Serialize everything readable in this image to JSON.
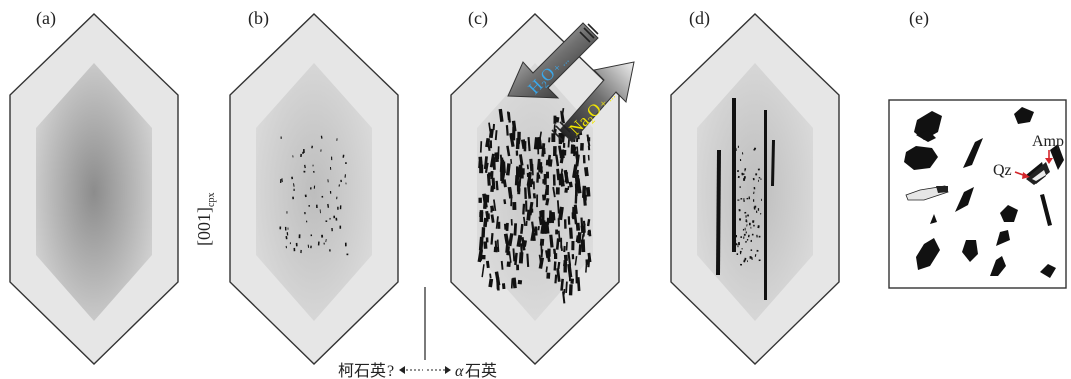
{
  "panels": [
    {
      "id": "a",
      "label": "(a)"
    },
    {
      "id": "b",
      "label": "(b)"
    },
    {
      "id": "c",
      "label": "(c)"
    },
    {
      "id": "d",
      "label": "(d)"
    },
    {
      "id": "e",
      "label": "(e)"
    }
  ],
  "axis_label": {
    "main": "[001]",
    "sub": "cpx"
  },
  "arrows": {
    "h2o": {
      "main": "H",
      "sub": "2",
      "rest": "O",
      "tail": "+ ...",
      "color": "#3aa7ea"
    },
    "na2o": {
      "main": "Na",
      "sub": "2",
      "rest": "O",
      "tail": "+ ...",
      "color": "#f2e600"
    }
  },
  "inset_labels": {
    "amp": "Amp",
    "qz": "Qz"
  },
  "bottom_caption": {
    "left": "柯石英",
    "question": "?",
    "right_symbol": "α",
    "right": "石英"
  },
  "colors": {
    "outer_rim": "#e6e6e6",
    "core_light": "#d2d2d2",
    "core_dark": "#8a8a8a",
    "needles": "#111111",
    "arrow_red": "#d4262b"
  }
}
